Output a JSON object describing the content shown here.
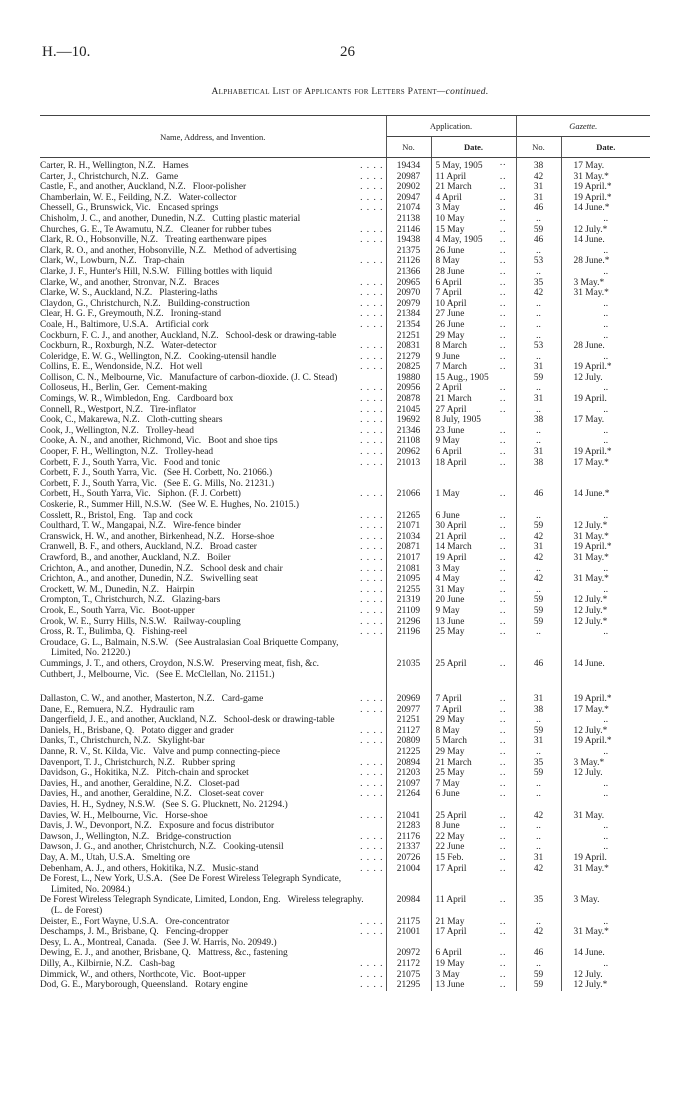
{
  "header": {
    "reference": "H.—10.",
    "page_number": "26"
  },
  "title": {
    "main": "Alphabetical List of Applicants for Letters Patent",
    "suffix": "—continued."
  },
  "columns": {
    "name": "Name, Address, and Invention.",
    "application": "Application.",
    "gazette": "Gazette.",
    "app_no": "No.",
    "app_date": "Date.",
    "gaz_no": "No.",
    "gaz_date": "Date."
  },
  "sections": [
    {
      "rows": [
        {
          "name": "Carter, R. H., Wellington, N.Z.",
          "invention": "Hames",
          "app_no": "19434",
          "app_date": "5 May, 1905",
          "gaz_no": "38",
          "gaz_date": "17 May."
        },
        {
          "name": "Carter, J., Christchurch, N.Z.",
          "invention": "Game",
          "app_no": "20987",
          "app_date": "11 April",
          "gaz_no": "42",
          "gaz_date": "31 May.*"
        },
        {
          "name": "Castle, F., and another, Auckland, N.Z.",
          "invention": "Floor-polisher",
          "app_no": "20902",
          "app_date": "21 March",
          "gaz_no": "31",
          "gaz_date": "19 April.*"
        },
        {
          "name": "Chamberlain, W. E., Feilding, N.Z.",
          "invention": "Water-collector",
          "app_no": "20947",
          "app_date": "4 April",
          "gaz_no": "31",
          "gaz_date": "19 April.*"
        },
        {
          "name": "Chessell, G., Brunswick, Vic.",
          "invention": "Encased springs",
          "app_no": "21074",
          "app_date": "3 May",
          "gaz_no": "46",
          "gaz_date": "14 June.*"
        },
        {
          "name": "Chisholm, J. C., and another, Dunedin, N.Z.",
          "invention": "Cutting plastic material",
          "app_no": "21138",
          "app_date": "10 May",
          "gaz_no": "..",
          "gaz_date": ".."
        },
        {
          "name": "Churches, G. E., Te Awamutu, N.Z.",
          "invention": "Cleaner for rubber tubes",
          "app_no": "21146",
          "app_date": "15 May",
          "gaz_no": "59",
          "gaz_date": "12 July.*"
        },
        {
          "name": "Clark, R. O., Hobsonville, N.Z.",
          "invention": "Treating earthenware pipes",
          "app_no": "19438",
          "app_date": "4 May, 1905",
          "gaz_no": "46",
          "gaz_date": "14 June."
        },
        {
          "name": "Clark, R. O., and another, Hobsonville, N.Z.",
          "invention": "Method of advertising",
          "app_no": "21375",
          "app_date": "26 June",
          "gaz_no": "..",
          "gaz_date": ".."
        },
        {
          "name": "Clark, W., Lowburn, N.Z.",
          "invention": "Trap-chain",
          "app_no": "21126",
          "app_date": "8 May",
          "gaz_no": "53",
          "gaz_date": "28 June.*"
        },
        {
          "name": "Clarke, J. F., Hunter's Hill, N.S.W.",
          "invention": "Filling bottles with liquid",
          "app_no": "21366",
          "app_date": "28 June",
          "gaz_no": "..",
          "gaz_date": ".."
        },
        {
          "name": "Clarke, W., and another, Stronvar, N.Z.",
          "invention": "Braces",
          "app_no": "20965",
          "app_date": "6 April",
          "gaz_no": "35",
          "gaz_date": "3 May.*"
        },
        {
          "name": "Clarke, W. S., Auckland, N.Z.",
          "invention": "Plastering-laths",
          "app_no": "20970",
          "app_date": "7 April",
          "gaz_no": "42",
          "gaz_date": "31 May.*"
        },
        {
          "name": "Claydon, G., Christchurch, N.Z.",
          "invention": "Building-construction",
          "app_no": "20979",
          "app_date": "10 April",
          "gaz_no": "..",
          "gaz_date": ".."
        },
        {
          "name": "Clear, H. G. F., Greymouth, N.Z.",
          "invention": "Ironing-stand",
          "app_no": "21384",
          "app_date": "27 June",
          "gaz_no": "..",
          "gaz_date": ".."
        },
        {
          "name": "Coale, H., Baltimore, U.S.A.",
          "invention": "Artificial cork",
          "app_no": "21354",
          "app_date": "26 June",
          "gaz_no": "..",
          "gaz_date": ".."
        },
        {
          "name": "Cockburn, F. C. J., and another, Auckland, N.Z.",
          "invention": "School-desk or drawing-table",
          "app_no": "21251",
          "app_date": "29 May",
          "gaz_no": "..",
          "gaz_date": ".."
        },
        {
          "name": "Cockburn, R., Roxburgh, N.Z.",
          "invention": "Water-detector",
          "app_no": "20831",
          "app_date": "8 March",
          "gaz_no": "53",
          "gaz_date": "28 June."
        },
        {
          "name": "Coleridge, E. W. G., Wellington, N.Z.",
          "invention": "Cooking-utensil handle",
          "app_no": "21279",
          "app_date": "9 June",
          "gaz_no": "..",
          "gaz_date": ".."
        },
        {
          "name": "Collins, E. E., Wendonside, N.Z.",
          "invention": "Hot well",
          "app_no": "20825",
          "app_date": "7 March",
          "gaz_no": "31",
          "gaz_date": "19 April.*"
        },
        {
          "name": "Collison, C. N., Melbourne, Vic.",
          "invention": "Manufacture of carbon-dioxide. (J. C. Stead)",
          "app_no": "19880",
          "app_date": "15 Aug., 1905",
          "gaz_no": "59",
          "gaz_date": "12 July."
        },
        {
          "name": "Colloseus, H., Berlin, Ger.",
          "invention": "Cement-making",
          "app_no": "20956",
          "app_date": "2 April",
          "gaz_no": "..",
          "gaz_date": ".."
        },
        {
          "name": "Comings, W. R., Wimbledon, Eng.",
          "invention": "Cardboard box",
          "app_no": "20878",
          "app_date": "21 March",
          "gaz_no": "31",
          "gaz_date": "19 April."
        },
        {
          "name": "Connell, R., Westport, N.Z.",
          "invention": "Tire-inflator",
          "app_no": "21045",
          "app_date": "27 April",
          "gaz_no": "..",
          "gaz_date": ".."
        },
        {
          "name": "Cook, C., Makarewa, N.Z.",
          "invention": "Cloth-cutting shears",
          "app_no": "19692",
          "app_date": "8 July, 1905",
          "gaz_no": "38",
          "gaz_date": "17 May."
        },
        {
          "name": "Cook, J., Wellington, N.Z.",
          "invention": "Trolley-head",
          "app_no": "21346",
          "app_date": "23 June",
          "gaz_no": "..",
          "gaz_date": ".."
        },
        {
          "name": "Cooke, A. N., and another, Richmond, Vic.",
          "invention": "Boot and shoe tips",
          "app_no": "21108",
          "app_date": "9 May",
          "gaz_no": "..",
          "gaz_date": ".."
        },
        {
          "name": "Cooper, F. H., Wellington, N.Z.",
          "invention": "Trolley-head",
          "app_no": "20962",
          "app_date": "6 April",
          "gaz_no": "31",
          "gaz_date": "19 April.*"
        },
        {
          "name": "Corbett, F. J., South Yarra, Vic.",
          "invention": "Food and tonic",
          "app_no": "21013",
          "app_date": "18 April",
          "gaz_no": "38",
          "gaz_date": "17 May.*"
        },
        {
          "name": "Corbett, F. J., South Yarra, Vic.",
          "invention": "(See H. Corbett, No. 21066.)"
        },
        {
          "name": "Corbett, F. J., South Yarra, Vic.",
          "invention": "(See E. G. Mills, No. 21231.)"
        },
        {
          "name": "Corbett, H., South Yarra, Vic.",
          "invention": "Siphon. (F. J. Corbett)",
          "app_no": "21066",
          "app_date": "1 May",
          "gaz_no": "46",
          "gaz_date": "14 June.*"
        },
        {
          "name": "Coskerie, R., Summer Hill, N.S.W.",
          "invention": "(See W. E. Hughes, No. 21015.)"
        },
        {
          "name": "Cosslett, R., Bristol, Eng.",
          "invention": "Tap and cock",
          "app_no": "21265",
          "app_date": "6 June",
          "gaz_no": "..",
          "gaz_date": ".."
        },
        {
          "name": "Coulthard, T. W., Mangapai, N.Z.",
          "invention": "Wire-fence binder",
          "app_no": "21071",
          "app_date": "30 April",
          "gaz_no": "59",
          "gaz_date": "12 July.*"
        },
        {
          "name": "Cranswick, H. W., and another, Birkenhead, N.Z.",
          "invention": "Horse-shoe",
          "app_no": "21034",
          "app_date": "21 April",
          "gaz_no": "42",
          "gaz_date": "31 May.*"
        },
        {
          "name": "Cranwell, B. F., and others, Auckland, N.Z.",
          "invention": "Broad caster",
          "app_no": "20871",
          "app_date": "14 March",
          "gaz_no": "31",
          "gaz_date": "19 April.*"
        },
        {
          "name": "Crawford, B., and another, Auckland, N.Z.",
          "invention": "Boiler",
          "app_no": "21017",
          "app_date": "19 April",
          "gaz_no": "42",
          "gaz_date": "31 May.*"
        },
        {
          "name": "Crichton, A., and another, Dunedin, N.Z.",
          "invention": "School desk and chair",
          "app_no": "21081",
          "app_date": "3 May",
          "gaz_no": "..",
          "gaz_date": ".."
        },
        {
          "name": "Crichton, A., and another, Dunedin, N.Z.",
          "invention": "Swivelling seat",
          "app_no": "21095",
          "app_date": "4 May",
          "gaz_no": "42",
          "gaz_date": "31 May.*"
        },
        {
          "name": "Crockett, W. M., Dunedin, N.Z.",
          "invention": "Hairpin",
          "app_no": "21255",
          "app_date": "31 May",
          "gaz_no": "..",
          "gaz_date": ".."
        },
        {
          "name": "Crompton, T., Christchurch, N.Z.",
          "invention": "Glazing-bars",
          "app_no": "21319",
          "app_date": "20 June",
          "gaz_no": "59",
          "gaz_date": "12 July.*"
        },
        {
          "name": "Crook, E., South Yarra, Vic.",
          "invention": "Boot-upper",
          "app_no": "21109",
          "app_date": "9 May",
          "gaz_no": "59",
          "gaz_date": "12 July.*"
        },
        {
          "name": "Crook, W. E., Surry Hills, N.S.W.",
          "invention": "Railway-coupling",
          "app_no": "21296",
          "app_date": "13 June",
          "gaz_no": "59",
          "gaz_date": "12 July.*"
        },
        {
          "name": "Cross, R. T., Bulimba, Q.",
          "invention": "Fishing-reel",
          "app_no": "21196",
          "app_date": "25 May",
          "gaz_no": "..",
          "gaz_date": ".."
        },
        {
          "name": "Croudace, G. L., Balmain, N.S.W.",
          "invention": "(See Australasian Coal Briquette Company, Limited, No. 21220.)"
        },
        {
          "name": "Cummings, J. T., and others, Croydon, N.S.W.",
          "invention": "Preserving meat, fish, &c.",
          "app_no": "21035",
          "app_date": "25 April",
          "gaz_no": "46",
          "gaz_date": "14 June."
        },
        {
          "name": "Cuthbert, J., Melbourne, Vic.",
          "invention": "(See E. McClellan, No. 21151.)"
        }
      ]
    },
    {
      "rows": [
        {
          "name": "Dallaston, C. W., and another, Masterton, N.Z.",
          "invention": "Card-game",
          "app_no": "20969",
          "app_date": "7 April",
          "gaz_no": "31",
          "gaz_date": "19 April.*"
        },
        {
          "name": "Dane, E., Remuera, N.Z.",
          "invention": "Hydraulic ram",
          "app_no": "20977",
          "app_date": "7 April",
          "gaz_no": "38",
          "gaz_date": "17 May.*"
        },
        {
          "name": "Dangerfield, J. E., and another, Auckland, N.Z.",
          "invention": "School-desk or drawing-table",
          "app_no": "21251",
          "app_date": "29 May",
          "gaz_no": "..",
          "gaz_date": ".."
        },
        {
          "name": "Daniels, H., Brisbane, Q.",
          "invention": "Potato digger and grader",
          "app_no": "21127",
          "app_date": "8 May",
          "gaz_no": "59",
          "gaz_date": "12 July.*"
        },
        {
          "name": "Danks, T., Christchurch, N.Z.",
          "invention": "Skylight-bar",
          "app_no": "20809",
          "app_date": "5 March",
          "gaz_no": "31",
          "gaz_date": "19 April.*"
        },
        {
          "name": "Danne, R. V., St. Kilda, Vic.",
          "invention": "Valve and pump connecting-piece",
          "app_no": "21225",
          "app_date": "29 May",
          "gaz_no": "..",
          "gaz_date": ".."
        },
        {
          "name": "Davenport, T. J., Christchurch, N.Z.",
          "invention": "Rubber spring",
          "app_no": "20894",
          "app_date": "21 March",
          "gaz_no": "35",
          "gaz_date": "3 May.*"
        },
        {
          "name": "Davidson, G., Hokitika, N.Z.",
          "invention": "Pitch-chain and sprocket",
          "app_no": "21203",
          "app_date": "25 May",
          "gaz_no": "59",
          "gaz_date": "12 July."
        },
        {
          "name": "Davies, H., and another, Geraldine, N.Z.",
          "invention": "Closet-pad",
          "app_no": "21097",
          "app_date": "7 May",
          "gaz_no": "..",
          "gaz_date": ".."
        },
        {
          "name": "Davies, H., and another, Geraldine, N.Z.",
          "invention": "Closet-seat cover",
          "app_no": "21264",
          "app_date": "6 June",
          "gaz_no": "..",
          "gaz_date": ".."
        },
        {
          "name": "Davies, H. H., Sydney, N.S.W.",
          "invention": "(See S. G. Plucknett, No. 21294.)"
        },
        {
          "name": "Davies, W. H., Melbourne, Vic.",
          "invention": "Horse-shoe",
          "app_no": "21041",
          "app_date": "25 April",
          "gaz_no": "42",
          "gaz_date": "31 May."
        },
        {
          "name": "Davis, J. W., Devonport, N.Z.",
          "invention": "Exposure and focus distributor",
          "app_no": "21283",
          "app_date": "8 June",
          "gaz_no": "..",
          "gaz_date": ".."
        },
        {
          "name": "Dawson, J., Wellington, N.Z.",
          "invention": "Bridge-construction",
          "app_no": "21176",
          "app_date": "22 May",
          "gaz_no": "..",
          "gaz_date": ".."
        },
        {
          "name": "Dawson, J. G., and another, Christchurch, N.Z.",
          "invention": "Cooking-utensil",
          "app_no": "21337",
          "app_date": "22 June",
          "gaz_no": "..",
          "gaz_date": ".."
        },
        {
          "name": "Day, A. M., Utah, U.S.A.",
          "invention": "Smelting ore",
          "app_no": "20726",
          "app_date": "15 Feb.",
          "gaz_no": "31",
          "gaz_date": "19 April."
        },
        {
          "name": "Debenham, A. J., and others, Hokitika, N.Z.",
          "invention": "Music-stand",
          "app_no": "21004",
          "app_date": "17 April",
          "gaz_no": "42",
          "gaz_date": "31 May.*"
        },
        {
          "name": "De Forest, L., New York, U.S.A.",
          "invention": "(See De Forest Wireless Telegraph Syndicate, Limited, No. 20984.)"
        },
        {
          "name": "De Forest Wireless Telegraph Syndicate, Limited, London, Eng.",
          "invention": "Wireless telegraphy. (L. de Forest)",
          "app_no": "20984",
          "app_date": "11 April",
          "gaz_no": "35",
          "gaz_date": "3 May."
        },
        {
          "name": "Deister, E., Fort Wayne, U.S.A.",
          "invention": "Ore-concentrator",
          "app_no": "21175",
          "app_date": "21 May",
          "gaz_no": "..",
          "gaz_date": ".."
        },
        {
          "name": "Deschamps, J. M., Brisbane, Q.",
          "invention": "Fencing-dropper",
          "app_no": "21001",
          "app_date": "17 April",
          "gaz_no": "42",
          "gaz_date": "31 May.*"
        },
        {
          "name": "Desy, L. A., Montreal, Canada.",
          "invention": "(See J. W. Harris, No. 20949.)"
        },
        {
          "name": "Dewing, E. J., and another, Brisbane, Q.",
          "invention": "Mattress, &c., fastening",
          "app_no": "20972",
          "app_date": "6 April",
          "gaz_no": "46",
          "gaz_date": "14 June."
        },
        {
          "name": "Dilly, A., Kilbirnie, N.Z.",
          "invention": "Cash-bag",
          "app_no": "21172",
          "app_date": "19 May",
          "gaz_no": "..",
          "gaz_date": ".."
        },
        {
          "name": "Dimmick, W., and others, Northcote, Vic.",
          "invention": "Boot-upper",
          "app_no": "21075",
          "app_date": "3 May",
          "gaz_no": "59",
          "gaz_date": "12 July."
        },
        {
          "name": "Dod, G. E., Maryborough, Queensland.",
          "invention": "Rotary engine",
          "app_no": "21295",
          "app_date": "13 June",
          "gaz_no": "59",
          "gaz_date": "12 July.*"
        }
      ]
    }
  ]
}
